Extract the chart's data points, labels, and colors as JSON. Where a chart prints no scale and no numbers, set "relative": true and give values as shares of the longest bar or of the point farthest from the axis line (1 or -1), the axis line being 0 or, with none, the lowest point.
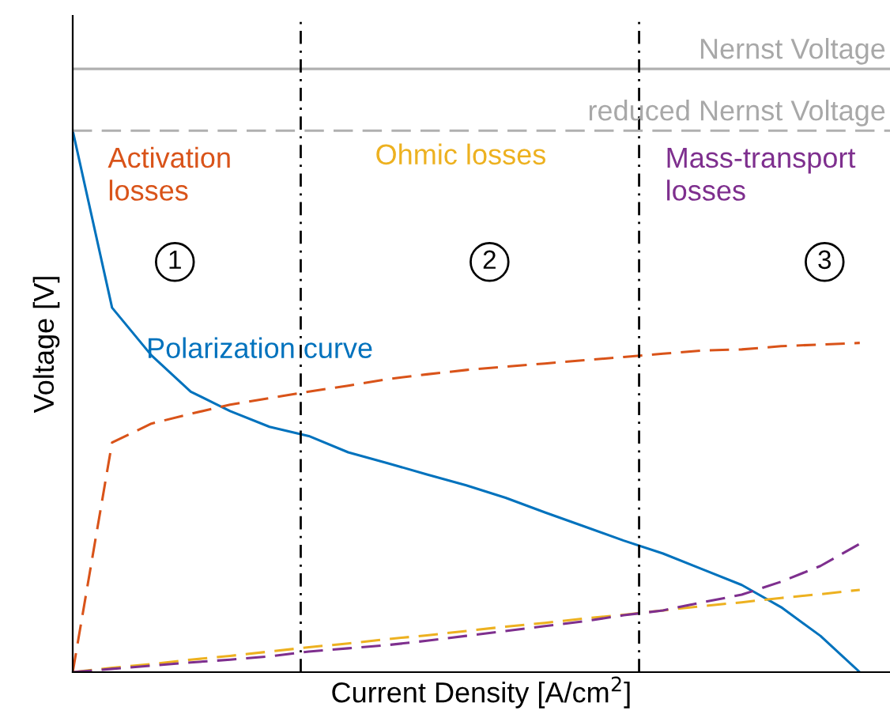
{
  "chart_data": {
    "type": "line",
    "relative": true,
    "xlabel": "Current Density [A/cm$^{2}$]",
    "ylabel": "Voltage [V]",
    "categories": [
      null,
      null,
      null,
      null,
      null,
      null,
      null,
      null,
      null,
      null,
      null,
      null,
      null,
      null,
      null,
      null,
      null,
      null,
      null,
      null,
      null
    ],
    "series": [
      {
        "name": "Polarization curve",
        "color": "#0072bd",
        "line_style": "solid",
        "values": [
          1.0,
          0.673,
          0.585,
          0.518,
          0.482,
          0.453,
          0.436,
          0.406,
          0.386,
          0.365,
          0.345,
          0.322,
          0.295,
          0.269,
          0.243,
          0.219,
          0.19,
          0.161,
          0.12,
          0.067,
          0.0
        ]
      },
      {
        "name": "Activation losses",
        "color": "#d95319",
        "line_style": "dashed",
        "values": [
          0.0,
          0.424,
          0.459,
          0.477,
          0.494,
          0.506,
          0.518,
          0.529,
          0.541,
          0.55,
          0.558,
          0.564,
          0.57,
          0.576,
          0.582,
          0.588,
          0.594,
          0.596,
          0.602,
          0.605,
          0.608
        ]
      },
      {
        "name": "Ohmic losses",
        "color": "#edb120",
        "line_style": "dashed",
        "values": [
          0.0,
          0.008,
          0.015,
          0.023,
          0.03,
          0.038,
          0.046,
          0.053,
          0.061,
          0.068,
          0.076,
          0.084,
          0.091,
          0.099,
          0.106,
          0.114,
          0.122,
          0.129,
          0.137,
          0.144,
          0.152
        ]
      },
      {
        "name": "Mass-transport losses",
        "color": "#7e2f8e",
        "line_style": "dashed",
        "values": [
          0.0,
          0.006,
          0.012,
          0.018,
          0.023,
          0.029,
          0.038,
          0.044,
          0.05,
          0.058,
          0.067,
          0.076,
          0.085,
          0.094,
          0.105,
          0.114,
          0.129,
          0.143,
          0.167,
          0.196,
          0.237
        ]
      }
    ],
    "ref_lines": [
      {
        "axis": "y",
        "value": 1.114,
        "label": "Nernst Voltage",
        "color": "#b0b0b0",
        "line_style": "solid"
      },
      {
        "axis": "y",
        "value": 1.0,
        "label": "reduced Nernst Voltage",
        "color": "#b0b0b0",
        "line_style": "dashed"
      }
    ],
    "annotations": [
      "1",
      "2",
      "3"
    ],
    "legend": false
  }
}
